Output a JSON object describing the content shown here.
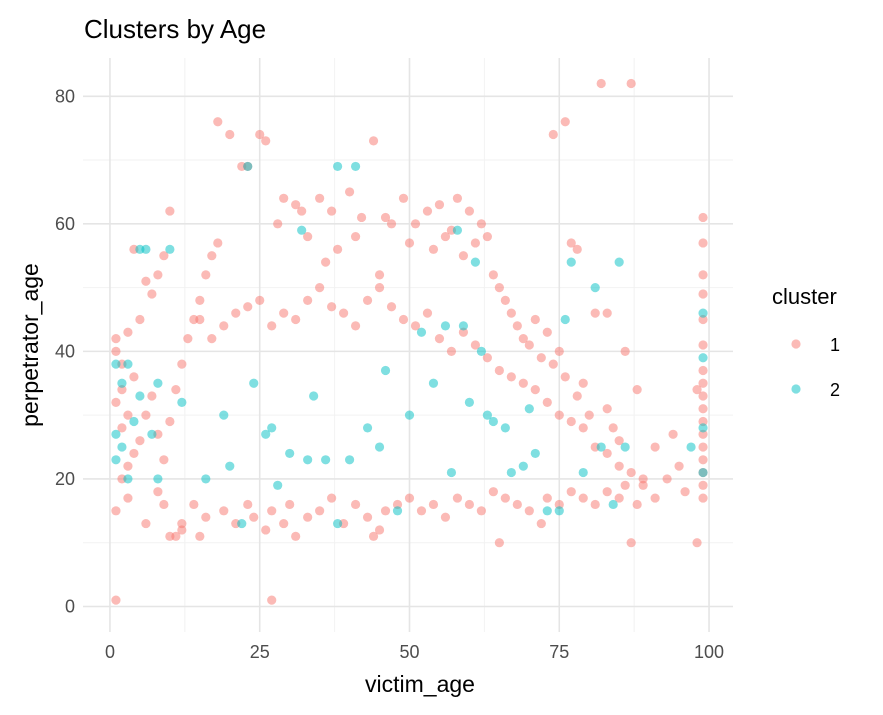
{
  "chart_data": {
    "type": "scatter",
    "title": "Clusters by Age",
    "xlabel": "victim_age",
    "ylabel": "perpetrator_age",
    "xlim": [
      -4.5,
      104
    ],
    "ylim": [
      -4,
      86
    ],
    "xticks": [
      0,
      25,
      50,
      75,
      100
    ],
    "xtick_labels": [
      "0",
      "25",
      "50",
      "75",
      "100"
    ],
    "yticks": [
      0,
      20,
      40,
      60,
      80
    ],
    "ytick_labels": [
      "0",
      "20",
      "40",
      "60",
      "80"
    ],
    "grid": true,
    "legend": {
      "title": "cluster",
      "position": "right"
    },
    "series": [
      {
        "name": "1",
        "color": "#F8766D",
        "points": [
          [
            1,
            1
          ],
          [
            27,
            1
          ],
          [
            15,
            11
          ],
          [
            11,
            11
          ],
          [
            10,
            11
          ],
          [
            12,
            12
          ],
          [
            26,
            12
          ],
          [
            31,
            11
          ],
          [
            44,
            11
          ],
          [
            45,
            12
          ],
          [
            65,
            10
          ],
          [
            87,
            10
          ],
          [
            98,
            10
          ],
          [
            1,
            15
          ],
          [
            3,
            17
          ],
          [
            6,
            13
          ],
          [
            9,
            16
          ],
          [
            12,
            13
          ],
          [
            8,
            18
          ],
          [
            14,
            16
          ],
          [
            16,
            14
          ],
          [
            19,
            15
          ],
          [
            21,
            13
          ],
          [
            23,
            16
          ],
          [
            24,
            14
          ],
          [
            27,
            15
          ],
          [
            29,
            13
          ],
          [
            30,
            16
          ],
          [
            33,
            14
          ],
          [
            35,
            15
          ],
          [
            37,
            17
          ],
          [
            39,
            13
          ],
          [
            41,
            16
          ],
          [
            43,
            14
          ],
          [
            46,
            15
          ],
          [
            48,
            16
          ],
          [
            50,
            17
          ],
          [
            52,
            15
          ],
          [
            54,
            16
          ],
          [
            56,
            14
          ],
          [
            58,
            17
          ],
          [
            60,
            16
          ],
          [
            62,
            15
          ],
          [
            64,
            18
          ],
          [
            66,
            17
          ],
          [
            68,
            16
          ],
          [
            70,
            15
          ],
          [
            72,
            13
          ],
          [
            73,
            17
          ],
          [
            75,
            16
          ],
          [
            77,
            18
          ],
          [
            79,
            17
          ],
          [
            81,
            16
          ],
          [
            83,
            18
          ],
          [
            85,
            17
          ],
          [
            86,
            19
          ],
          [
            88,
            16
          ],
          [
            89,
            19
          ],
          [
            91,
            17
          ],
          [
            93,
            20
          ],
          [
            95,
            22
          ],
          [
            96,
            18
          ],
          [
            99,
            17
          ],
          [
            99,
            19
          ],
          [
            99,
            21
          ],
          [
            99,
            23
          ],
          [
            99,
            25
          ],
          [
            99,
            27
          ],
          [
            99,
            29
          ],
          [
            99,
            31
          ],
          [
            99,
            33
          ],
          [
            99,
            35
          ],
          [
            99,
            37
          ],
          [
            99,
            41
          ],
          [
            99,
            45
          ],
          [
            99,
            49
          ],
          [
            99,
            52
          ],
          [
            99,
            57
          ],
          [
            99,
            61
          ],
          [
            2,
            20
          ],
          [
            3,
            22
          ],
          [
            4,
            24
          ],
          [
            5,
            26
          ],
          [
            2,
            28
          ],
          [
            3,
            30
          ],
          [
            1,
            32
          ],
          [
            2,
            34
          ],
          [
            4,
            36
          ],
          [
            1,
            40
          ],
          [
            1,
            42
          ],
          [
            3,
            43
          ],
          [
            5,
            45
          ],
          [
            7,
            49
          ],
          [
            8,
            52
          ],
          [
            9,
            55
          ],
          [
            10,
            62
          ],
          [
            6,
            51
          ],
          [
            4,
            56
          ],
          [
            2,
            38
          ],
          [
            6,
            30
          ],
          [
            7,
            33
          ],
          [
            8,
            27
          ],
          [
            9,
            23
          ],
          [
            10,
            29
          ],
          [
            11,
            34
          ],
          [
            12,
            38
          ],
          [
            13,
            42
          ],
          [
            14,
            45
          ],
          [
            15,
            48
          ],
          [
            16,
            52
          ],
          [
            17,
            55
          ],
          [
            18,
            57
          ],
          [
            18,
            76
          ],
          [
            20,
            74
          ],
          [
            22,
            69
          ],
          [
            23,
            69
          ],
          [
            25,
            74
          ],
          [
            26,
            73
          ],
          [
            28,
            60
          ],
          [
            29,
            64
          ],
          [
            31,
            63
          ],
          [
            32,
            62
          ],
          [
            33,
            58
          ],
          [
            35,
            64
          ],
          [
            36,
            54
          ],
          [
            37,
            62
          ],
          [
            38,
            56
          ],
          [
            40,
            65
          ],
          [
            41,
            58
          ],
          [
            42,
            61
          ],
          [
            44,
            73
          ],
          [
            45,
            52
          ],
          [
            46,
            61
          ],
          [
            47,
            60
          ],
          [
            49,
            64
          ],
          [
            50,
            57
          ],
          [
            51,
            60
          ],
          [
            53,
            62
          ],
          [
            54,
            56
          ],
          [
            55,
            63
          ],
          [
            56,
            58
          ],
          [
            57,
            59
          ],
          [
            58,
            64
          ],
          [
            59,
            55
          ],
          [
            60,
            62
          ],
          [
            61,
            57
          ],
          [
            62,
            60
          ],
          [
            63,
            58
          ],
          [
            64,
            52
          ],
          [
            65,
            50
          ],
          [
            66,
            48
          ],
          [
            67,
            46
          ],
          [
            68,
            44
          ],
          [
            69,
            42
          ],
          [
            70,
            41
          ],
          [
            71,
            45
          ],
          [
            72,
            39
          ],
          [
            73,
            43
          ],
          [
            74,
            38
          ],
          [
            75,
            40
          ],
          [
            76,
            36
          ],
          [
            77,
            57
          ],
          [
            78,
            33
          ],
          [
            79,
            35
          ],
          [
            80,
            30
          ],
          [
            82,
            82
          ],
          [
            83,
            31
          ],
          [
            84,
            28
          ],
          [
            85,
            26
          ],
          [
            87,
            82
          ],
          [
            74,
            74
          ],
          [
            76,
            76
          ],
          [
            78,
            56
          ],
          [
            81,
            46
          ],
          [
            83,
            46
          ],
          [
            86,
            40
          ],
          [
            88,
            34
          ],
          [
            91,
            25
          ],
          [
            94,
            27
          ],
          [
            98,
            34
          ],
          [
            15,
            45
          ],
          [
            17,
            42
          ],
          [
            19,
            44
          ],
          [
            21,
            46
          ],
          [
            23,
            47
          ],
          [
            25,
            48
          ],
          [
            27,
            44
          ],
          [
            29,
            46
          ],
          [
            31,
            45
          ],
          [
            33,
            48
          ],
          [
            35,
            50
          ],
          [
            37,
            47
          ],
          [
            39,
            46
          ],
          [
            41,
            44
          ],
          [
            43,
            48
          ],
          [
            45,
            50
          ],
          [
            47,
            47
          ],
          [
            49,
            45
          ],
          [
            51,
            44
          ],
          [
            53,
            46
          ],
          [
            55,
            42
          ],
          [
            57,
            40
          ],
          [
            59,
            43
          ],
          [
            61,
            41
          ],
          [
            63,
            39
          ],
          [
            65,
            37
          ],
          [
            67,
            36
          ],
          [
            69,
            35
          ],
          [
            71,
            34
          ],
          [
            73,
            32
          ],
          [
            75,
            30
          ],
          [
            77,
            29
          ],
          [
            79,
            28
          ],
          [
            81,
            25
          ],
          [
            83,
            24
          ],
          [
            85,
            22
          ],
          [
            87,
            21
          ],
          [
            89,
            20
          ]
        ]
      },
      {
        "name": "2",
        "color": "#00BFC4",
        "points": [
          [
            1,
            38
          ],
          [
            1,
            27
          ],
          [
            2,
            25
          ],
          [
            3,
            20
          ],
          [
            1,
            23
          ],
          [
            2,
            35
          ],
          [
            3,
            38
          ],
          [
            4,
            29
          ],
          [
            5,
            56
          ],
          [
            6,
            56
          ],
          [
            8,
            35
          ],
          [
            10,
            56
          ],
          [
            8,
            20
          ],
          [
            12,
            32
          ],
          [
            16,
            20
          ],
          [
            20,
            22
          ],
          [
            22,
            13
          ],
          [
            23,
            69
          ],
          [
            24,
            35
          ],
          [
            26,
            27
          ],
          [
            28,
            19
          ],
          [
            30,
            24
          ],
          [
            32,
            59
          ],
          [
            34,
            33
          ],
          [
            36,
            23
          ],
          [
            38,
            69
          ],
          [
            38,
            13
          ],
          [
            40,
            23
          ],
          [
            41,
            69
          ],
          [
            43,
            28
          ],
          [
            46,
            37
          ],
          [
            48,
            15
          ],
          [
            50,
            30
          ],
          [
            52,
            43
          ],
          [
            54,
            35
          ],
          [
            56,
            44
          ],
          [
            58,
            59
          ],
          [
            59,
            44
          ],
          [
            60,
            32
          ],
          [
            61,
            54
          ],
          [
            62,
            40
          ],
          [
            64,
            29
          ],
          [
            66,
            28
          ],
          [
            67,
            21
          ],
          [
            69,
            22
          ],
          [
            71,
            24
          ],
          [
            73,
            15
          ],
          [
            75,
            15
          ],
          [
            76,
            45
          ],
          [
            77,
            54
          ],
          [
            79,
            21
          ],
          [
            81,
            50
          ],
          [
            82,
            25
          ],
          [
            84,
            16
          ],
          [
            85,
            54
          ],
          [
            86,
            25
          ],
          [
            97,
            25
          ],
          [
            99,
            46
          ],
          [
            99,
            39
          ],
          [
            99,
            21
          ],
          [
            99,
            28
          ],
          [
            7,
            27
          ],
          [
            5,
            33
          ],
          [
            19,
            30
          ],
          [
            33,
            23
          ],
          [
            57,
            21
          ],
          [
            63,
            30
          ],
          [
            70,
            31
          ],
          [
            45,
            25
          ],
          [
            27,
            28
          ]
        ]
      }
    ]
  }
}
